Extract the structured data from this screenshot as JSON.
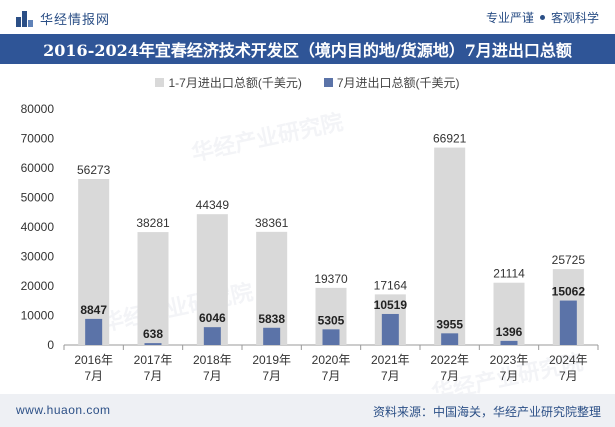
{
  "header": {
    "logo_text": "华经情报网",
    "tagline_left": "专业严谨",
    "tagline_right": "客观科学"
  },
  "title": "2016-2024年宜春经济技术开发区（境内目的地/货源地）7月进出口总额",
  "footer": {
    "site": "www.huaon.com",
    "source": "资料来源：中国海关，华经产业研究院整理"
  },
  "watermark": "华经产业研究院",
  "colors": {
    "title_bg": "#2f5597",
    "series_cumulative": "#d9d9d9",
    "series_month": "#5b73a8"
  },
  "chart_data": {
    "type": "bar",
    "categories": [
      "2016年\n7月",
      "2017年\n7月",
      "2018年\n7月",
      "2019年\n7月",
      "2020年\n7月",
      "2021年\n7月",
      "2022年\n7月",
      "2023年\n7月",
      "2024年\n7月"
    ],
    "series": [
      {
        "name": "1-7月进出口总额(千美元)",
        "values": [
          56273,
          38281,
          44349,
          38361,
          19370,
          17164,
          66921,
          21114,
          25725
        ]
      },
      {
        "name": "7月进出口总额(千美元)",
        "values": [
          8847,
          638,
          6046,
          5838,
          5305,
          10519,
          3955,
          1396,
          15062
        ]
      }
    ],
    "ylim": [
      0,
      80000
    ],
    "yticks": [
      0,
      10000,
      20000,
      30000,
      40000,
      50000,
      60000,
      70000,
      80000
    ],
    "grid": false,
    "legend": "top-center"
  }
}
